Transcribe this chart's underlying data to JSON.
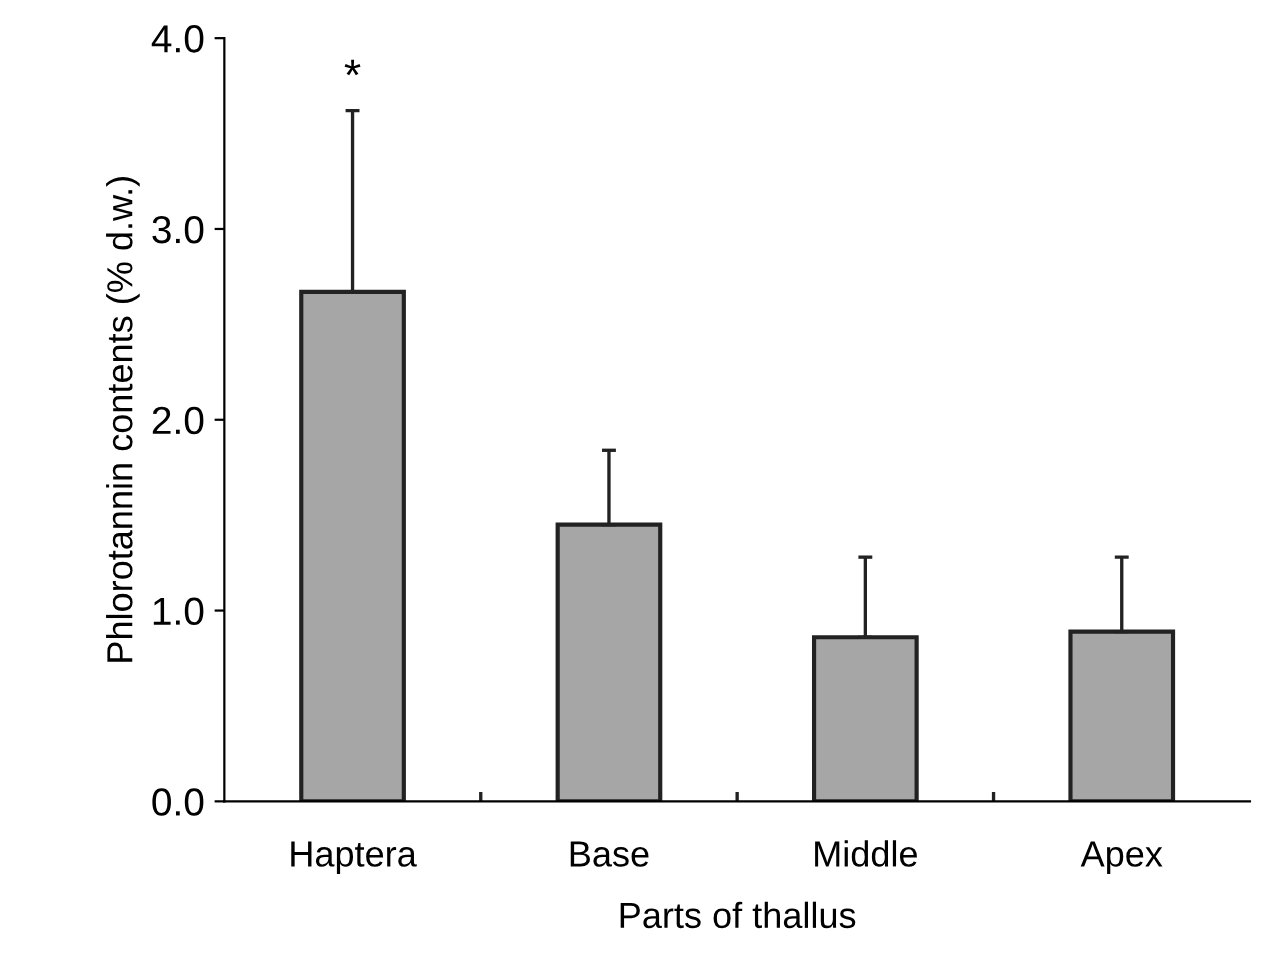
{
  "chart_data": {
    "type": "bar",
    "xlabel": "Parts of thallus",
    "ylabel": "Phlorotannin contents (% d.w.)",
    "categories": [
      "Haptera",
      "Base",
      "Middle",
      "Apex"
    ],
    "values": [
      2.67,
      1.45,
      0.86,
      0.89
    ],
    "errors": [
      [
        2.67,
        3.62
      ],
      [
        1.45,
        1.84
      ],
      [
        0.86,
        1.28
      ],
      [
        0.89,
        1.28
      ]
    ],
    "color": "#a6a6a6",
    "ylim": [
      0,
      4
    ],
    "yticks": [
      {
        "value": 0,
        "label": "0.0"
      },
      {
        "value": 1,
        "label": "1.0"
      },
      {
        "value": 2,
        "label": "2.0"
      },
      {
        "value": 3,
        "label": "3.0"
      },
      {
        "value": 4,
        "label": "4.0"
      }
    ],
    "annotations": [
      {
        "text": "*",
        "x": "Haptera",
        "y": 3.62
      }
    ],
    "grid": false,
    "legend": false
  }
}
